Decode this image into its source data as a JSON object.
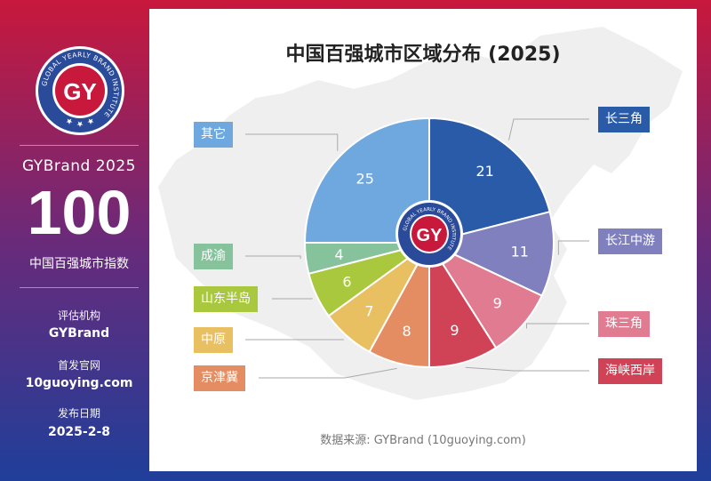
{
  "sidebar": {
    "logo_text": "GY",
    "logo_ring_text": "GLOBAL YEARLY BRAND INSTITUTE",
    "brand_year": "GYBrand 2025",
    "big_number": "100",
    "index_label": "中国百强城市指数",
    "agency_label": "评估机构",
    "agency_value": "GYBrand",
    "site_label": "首发官网",
    "site_value": "10guoying.com",
    "date_label": "发布日期",
    "date_value": "2025-2-8"
  },
  "colors": {
    "accent_red": "#c8183c",
    "accent_blue": "#1f3f9a"
  },
  "chart_data": {
    "type": "pie",
    "title": "中国百强城市区域分布 (2025)",
    "source": "数据来源: GYBrand (10guoying.com)",
    "center_logo_text": "GY",
    "slices": [
      {
        "label": "长三角",
        "value": 21,
        "color": "#2a5ba8"
      },
      {
        "label": "长江中游",
        "value": 11,
        "color": "#8180bf"
      },
      {
        "label": "珠三角",
        "value": 9,
        "color": "#e07b91"
      },
      {
        "label": "海峡西岸",
        "value": 9,
        "color": "#d04256"
      },
      {
        "label": "京津冀",
        "value": 8,
        "color": "#e58d62"
      },
      {
        "label": "中原",
        "value": 7,
        "color": "#e8c061"
      },
      {
        "label": "山东半岛",
        "value": 6,
        "color": "#a9c83d"
      },
      {
        "label": "成渝",
        "value": 4,
        "color": "#86c39c"
      },
      {
        "label": "其它",
        "value": 25,
        "color": "#6fa8de"
      }
    ]
  }
}
